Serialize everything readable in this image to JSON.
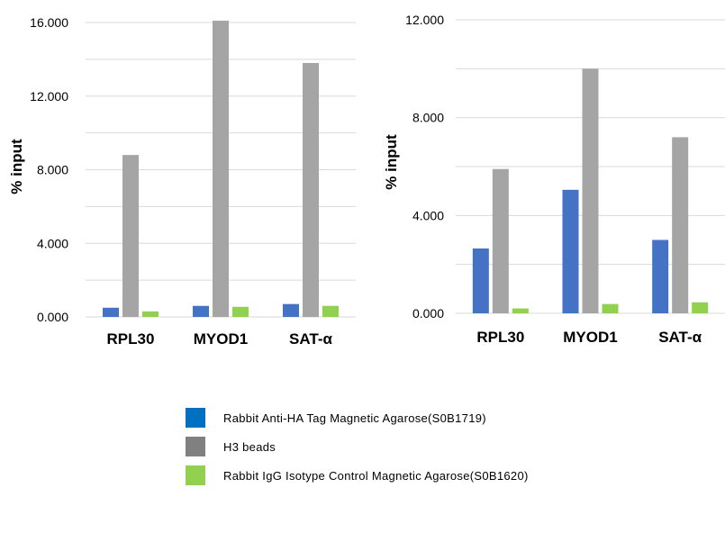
{
  "legend": {
    "items": [
      {
        "label": "Rabbit Anti-HA Tag Magnetic Agarose(S0B1719)",
        "color": "#0070C0"
      },
      {
        "label": "H3 beads",
        "color": "#808080"
      },
      {
        "label": "Rabbit IgG Isotype Control Magnetic Agarose(S0B1620)",
        "color": "#92D050"
      }
    ]
  },
  "chart_data": [
    {
      "type": "bar",
      "ylabel": "% input",
      "ylim": [
        0,
        16
      ],
      "yticks": [
        0,
        4,
        8,
        12,
        16
      ],
      "ytick_labels": [
        "0.000",
        "4.000",
        "8.000",
        "12.000",
        "16.000"
      ],
      "grid": true,
      "categories": [
        "RPL30",
        "MYOD1",
        "SAT-α"
      ],
      "series": [
        {
          "name": "Rabbit Anti-HA Tag Magnetic Agarose(S0B1719)",
          "color": "#4472C4",
          "values": [
            0.5,
            0.6,
            0.7
          ]
        },
        {
          "name": "H3 beads",
          "color": "#A5A5A5",
          "values": [
            8.8,
            16.1,
            13.8
          ]
        },
        {
          "name": "Rabbit IgG Isotype Control Magnetic Agarose(S0B1620)",
          "color": "#92D050",
          "values": [
            0.3,
            0.55,
            0.6
          ]
        }
      ]
    },
    {
      "type": "bar",
      "ylabel": "% input",
      "ylim": [
        0,
        12
      ],
      "yticks": [
        0,
        4,
        8,
        12
      ],
      "ytick_labels": [
        "0.000",
        "4.000",
        "8.000",
        "12.000"
      ],
      "grid": true,
      "categories": [
        "RPL30",
        "MYOD1",
        "SAT-α"
      ],
      "series": [
        {
          "name": "Rabbit Anti-HA Tag Magnetic Agarose(S0B1719)",
          "color": "#4472C4",
          "values": [
            2.65,
            5.05,
            3.0
          ]
        },
        {
          "name": "H3 beads",
          "color": "#A5A5A5",
          "values": [
            5.9,
            10.0,
            7.2
          ]
        },
        {
          "name": "Rabbit IgG Isotype Control Magnetic Agarose(S0B1620)",
          "color": "#92D050",
          "values": [
            0.2,
            0.38,
            0.45
          ]
        }
      ]
    }
  ]
}
